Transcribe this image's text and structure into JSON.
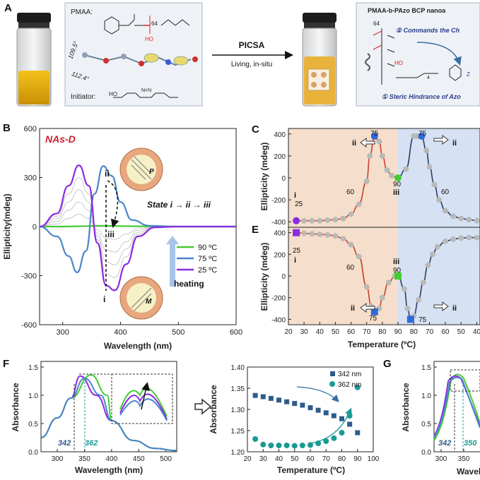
{
  "panels": {
    "a": {
      "label": "A",
      "pmaa_label": "PMAA:",
      "subscript_64": "64",
      "subscript_64b": "64",
      "angle_1": "109.5°",
      "angle_2": "112.4°",
      "initiator_label": "Initiator:",
      "arrow_top": "PICSA",
      "arrow_bottom": "Living, in-situ",
      "box_title": "PMAA-b-PAzo BCP nanoa",
      "box_line2": "② Commands the Ch",
      "box_line3": "① Steric Hindrance of Azo",
      "chain_sub": "4"
    },
    "b": {
      "label": "B",
      "title": "NAs-D",
      "state_text": "State i → ii → iii",
      "mark_ii": "ii",
      "mark_iii": "iii",
      "mark_i": "i",
      "helix_p": "P",
      "helix_m": "M",
      "heating": "heating",
      "legend": [
        "90 ºC",
        "75 ºC",
        "25 ºC"
      ],
      "legend_colors": [
        "#44cc33",
        "#4a86c8",
        "#8a2be2"
      ],
      "xlabel": "Wavelength (nm)",
      "ylabel": "Ellipticity(mdeg)",
      "xticks": [
        "300",
        "400",
        "500",
        "600"
      ],
      "yticks": [
        "600",
        "300",
        "0",
        "-300",
        "-600"
      ]
    },
    "c": {
      "label": "C",
      "ylabel": "Ellipticity (mdeg)",
      "yticks": [
        "400",
        "200",
        "0",
        "-200",
        "-400"
      ],
      "annotations": [
        "25",
        "i",
        "60",
        "ii",
        "75",
        "90",
        "iii",
        "75",
        "ii",
        "60"
      ]
    },
    "e": {
      "label": "E",
      "ylabel": "Ellipticity (mdeg)",
      "yticks": [
        "400",
        "200",
        "0",
        "-200",
        "-400"
      ],
      "annotations": [
        "25",
        "i",
        "60",
        "ii",
        "75",
        "iii",
        "90",
        "75",
        "ii"
      ],
      "xlabel": "Temperature (ºC)",
      "xticks": [
        "20",
        "30",
        "40",
        "50",
        "60",
        "70",
        "80",
        "90",
        "80",
        "70",
        "60",
        "50",
        "40"
      ]
    },
    "f": {
      "label": "F",
      "ylabel": "Absorbance",
      "xlabel": "Wavelength (nm)",
      "xticks": [
        "300",
        "350",
        "400",
        "450",
        "500"
      ],
      "yticks": [
        "1.5",
        "1.0",
        "0.5",
        "0.0"
      ],
      "mark_342": "342",
      "mark_362": "362"
    },
    "f2": {
      "ylabel": "Absorbance",
      "xlabel": "Temperature (ºC)",
      "xticks": [
        "20",
        "30",
        "40",
        "50",
        "60",
        "70",
        "80",
        "90",
        "100"
      ],
      "yticks": [
        "1.40",
        "1.35",
        "1.30",
        "1.25",
        "1.20"
      ],
      "legend": [
        "342 nm",
        "362 nm"
      ]
    },
    "g": {
      "label": "G",
      "ylabel": "Absorbance",
      "xlabel": "Wavel",
      "xticks": [
        "300",
        "350"
      ],
      "yticks": [
        "1.5",
        "1.0",
        "0.5",
        "0.0"
      ],
      "mark_342": "342",
      "mark_362": "350"
    }
  },
  "chart_data": [
    {
      "type": "line",
      "panel": "B",
      "xlim": [
        260,
        600
      ],
      "ylim": [
        -600,
        600
      ],
      "series": [
        {
          "name": "90 ºC",
          "color": "#44cc33",
          "x": [
            260,
            300,
            330,
            360,
            380,
            400,
            450,
            500,
            600
          ],
          "y": [
            0,
            0,
            2,
            5,
            5,
            3,
            1,
            0,
            0
          ]
        },
        {
          "name": "75 ºC",
          "color": "#4a86c8",
          "x": [
            260,
            290,
            310,
            325,
            340,
            355,
            370,
            385,
            400,
            420,
            450,
            500,
            600
          ],
          "y": [
            0,
            -60,
            -180,
            -280,
            -150,
            200,
            370,
            310,
            150,
            40,
            5,
            0,
            0
          ]
        },
        {
          "name": "25 ºC",
          "color": "#8a2be2",
          "x": [
            260,
            290,
            310,
            328,
            345,
            360,
            375,
            390,
            410,
            430,
            460,
            500,
            600
          ],
          "y": [
            0,
            80,
            250,
            375,
            250,
            -100,
            -360,
            -390,
            -230,
            -60,
            -5,
            0,
            0
          ]
        }
      ]
    },
    {
      "type": "line",
      "panel": "C",
      "ylim": [
        -450,
        450
      ],
      "x_segments": "heating 20→90 then cooling 90→40",
      "points_heating": [
        [
          25,
          -390
        ],
        [
          30,
          -390
        ],
        [
          35,
          -390
        ],
        [
          40,
          -390
        ],
        [
          45,
          -385
        ],
        [
          50,
          -380
        ],
        [
          55,
          -370
        ],
        [
          60,
          -330
        ],
        [
          65,
          -240
        ],
        [
          70,
          -30
        ],
        [
          72,
          200
        ],
        [
          75,
          380
        ],
        [
          78,
          330
        ],
        [
          80,
          200
        ],
        [
          83,
          70
        ],
        [
          86,
          20
        ],
        [
          90,
          0
        ]
      ],
      "points_cooling": [
        [
          90,
          0
        ],
        [
          85,
          80
        ],
        [
          80,
          380
        ],
        [
          78,
          380
        ],
        [
          75,
          380
        ],
        [
          72,
          250
        ],
        [
          70,
          100
        ],
        [
          67,
          -60
        ],
        [
          64,
          -200
        ],
        [
          60,
          -300
        ],
        [
          55,
          -350
        ],
        [
          50,
          -370
        ],
        [
          45,
          -380
        ],
        [
          40,
          -390
        ]
      ]
    },
    {
      "type": "line",
      "panel": "E",
      "ylim": [
        -450,
        450
      ],
      "points_heating": [
        [
          25,
          400
        ],
        [
          30,
          395
        ],
        [
          35,
          390
        ],
        [
          40,
          385
        ],
        [
          45,
          380
        ],
        [
          50,
          370
        ],
        [
          55,
          345
        ],
        [
          60,
          290
        ],
        [
          65,
          180
        ],
        [
          70,
          -100
        ],
        [
          73,
          -280
        ],
        [
          75,
          -330
        ],
        [
          78,
          -300
        ],
        [
          80,
          -200
        ],
        [
          84,
          -60
        ],
        [
          88,
          0
        ],
        [
          90,
          0
        ]
      ],
      "points_cooling": [
        [
          90,
          0
        ],
        [
          86,
          -120
        ],
        [
          84,
          -300
        ],
        [
          82,
          -400
        ],
        [
          80,
          -370
        ],
        [
          77,
          -220
        ],
        [
          74,
          -60
        ],
        [
          71,
          100
        ],
        [
          68,
          200
        ],
        [
          65,
          270
        ],
        [
          60,
          320
        ],
        [
          55,
          340
        ],
        [
          50,
          350
        ],
        [
          45,
          355
        ],
        [
          40,
          355
        ]
      ]
    },
    {
      "type": "line",
      "panel": "F",
      "xlim": [
        270,
        520
      ],
      "ylim": [
        0,
        1.5
      ],
      "series": [
        {
          "name": "25 ºC",
          "color": "#8a2be2",
          "peak": 342,
          "max": 1.34
        },
        {
          "name": "90 ºC",
          "color": "#44cc33",
          "peak": 362,
          "max": 1.36
        },
        {
          "name": "",
          "color": "#4a86c8",
          "peak": 350,
          "max": 1.3
        }
      ]
    },
    {
      "type": "scatter",
      "panel": "F-right",
      "xlim": [
        20,
        100
      ],
      "ylim": [
        1.2,
        1.4
      ],
      "series": [
        {
          "name": "342 nm",
          "color": "#2e5c8a",
          "x": [
            25,
            30,
            35,
            40,
            45,
            50,
            55,
            60,
            65,
            70,
            75,
            80,
            85,
            90
          ],
          "y": [
            1.333,
            1.33,
            1.326,
            1.322,
            1.318,
            1.314,
            1.31,
            1.304,
            1.298,
            1.292,
            1.285,
            1.278,
            1.265,
            1.245
          ]
        },
        {
          "name": "362 nm",
          "color": "#199a94",
          "x": [
            25,
            30,
            35,
            40,
            45,
            50,
            55,
            60,
            65,
            70,
            75,
            80,
            85,
            90
          ],
          "y": [
            1.23,
            1.217,
            1.215,
            1.215,
            1.215,
            1.214,
            1.215,
            1.216,
            1.22,
            1.225,
            1.232,
            1.245,
            1.285,
            1.352
          ]
        }
      ]
    }
  ]
}
